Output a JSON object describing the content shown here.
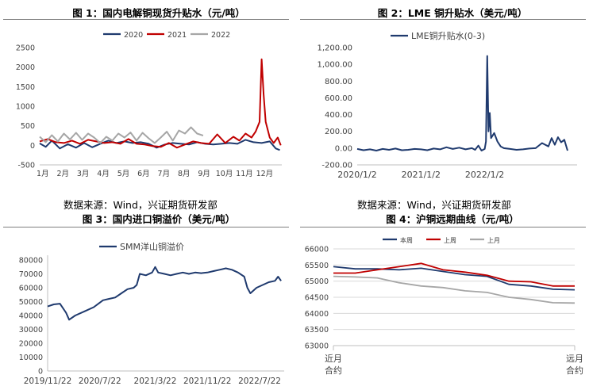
{
  "captions": {
    "fig1": "图 1：国内电解铜现货升贴水（元/吨）",
    "fig2": "图 2：LME 铜升贴水（美元/吨）",
    "fig3": "图 3：国内进口铜溢价（美元/吨）",
    "fig4": "图 4：沪铜远期曲线（元/吨）",
    "source_left": "数据来源：Wind，兴证期货研发部",
    "source_right": "数据来源：Wind，兴证期货研发部"
  },
  "colors": {
    "navy": "#1f3a6e",
    "red": "#c00000",
    "gray": "#a6a6a6"
  },
  "chart_data": [
    {
      "id": "fig1",
      "type": "line",
      "title": "图 1：国内电解铜现货升贴水（元/吨）",
      "categories": [
        "1月",
        "2月",
        "3月",
        "4月",
        "5月",
        "6月",
        "7月",
        "8月",
        "9月",
        "10月",
        "11月",
        "12月"
      ],
      "y_ticks": [
        "2500",
        "2000",
        "1500",
        "1000",
        "500",
        "0",
        "-500"
      ],
      "ylim": [
        -500,
        2500
      ],
      "legend": "top",
      "series": [
        {
          "name": "2020",
          "color": "#1f3a6e",
          "points": [
            [
              0,
              50
            ],
            [
              0.3,
              -40
            ],
            [
              0.6,
              120
            ],
            [
              1,
              -80
            ],
            [
              1.4,
              30
            ],
            [
              1.8,
              -60
            ],
            [
              2.2,
              60
            ],
            [
              2.6,
              -50
            ],
            [
              3,
              40
            ],
            [
              3.4,
              120
            ],
            [
              3.8,
              60
            ],
            [
              4.2,
              100
            ],
            [
              4.6,
              60
            ],
            [
              5,
              80
            ],
            [
              5.4,
              40
            ],
            [
              5.8,
              -60
            ],
            [
              6.2,
              20
            ],
            [
              6.6,
              60
            ],
            [
              7,
              40
            ],
            [
              7.4,
              20
            ],
            [
              7.8,
              80
            ],
            [
              8.2,
              40
            ],
            [
              8.6,
              20
            ],
            [
              9,
              40
            ],
            [
              9.4,
              60
            ],
            [
              9.8,
              40
            ],
            [
              10.2,
              140
            ],
            [
              10.6,
              80
            ],
            [
              11,
              60
            ],
            [
              11.4,
              100
            ],
            [
              11.7,
              -80
            ],
            [
              11.9,
              -120
            ]
          ]
        },
        {
          "name": "2021",
          "color": "#c00000",
          "points": [
            [
              0,
              100
            ],
            [
              0.4,
              160
            ],
            [
              0.8,
              80
            ],
            [
              1.2,
              60
            ],
            [
              1.6,
              120
            ],
            [
              2,
              40
            ],
            [
              2.4,
              140
            ],
            [
              2.8,
              100
            ],
            [
              3.2,
              60
            ],
            [
              3.6,
              80
            ],
            [
              4,
              40
            ],
            [
              4.4,
              160
            ],
            [
              4.8,
              40
            ],
            [
              5.2,
              20
            ],
            [
              5.6,
              -20
            ],
            [
              6,
              -40
            ],
            [
              6.4,
              60
            ],
            [
              6.8,
              -60
            ],
            [
              7.2,
              20
            ],
            [
              7.6,
              100
            ],
            [
              8,
              60
            ],
            [
              8.4,
              40
            ],
            [
              8.8,
              280
            ],
            [
              9.2,
              60
            ],
            [
              9.6,
              220
            ],
            [
              9.9,
              120
            ],
            [
              10.2,
              300
            ],
            [
              10.5,
              200
            ],
            [
              10.7,
              350
            ],
            [
              10.9,
              600
            ],
            [
              11.0,
              2200
            ],
            [
              11.1,
              1300
            ],
            [
              11.2,
              600
            ],
            [
              11.4,
              200
            ],
            [
              11.6,
              60
            ],
            [
              11.8,
              200
            ],
            [
              11.95,
              0
            ]
          ]
        },
        {
          "name": "2022",
          "color": "#a6a6a6",
          "points": [
            [
              0,
              220
            ],
            [
              0.3,
              80
            ],
            [
              0.6,
              260
            ],
            [
              0.9,
              100
            ],
            [
              1.2,
              300
            ],
            [
              1.5,
              150
            ],
            [
              1.8,
              320
            ],
            [
              2.1,
              140
            ],
            [
              2.4,
              300
            ],
            [
              2.7,
              200
            ],
            [
              3,
              60
            ],
            [
              3.3,
              220
            ],
            [
              3.6,
              120
            ],
            [
              3.9,
              300
            ],
            [
              4.2,
              200
            ],
            [
              4.5,
              330
            ],
            [
              4.8,
              120
            ],
            [
              5.1,
              320
            ],
            [
              5.4,
              180
            ],
            [
              5.7,
              60
            ],
            [
              6,
              200
            ],
            [
              6.3,
              350
            ],
            [
              6.6,
              120
            ],
            [
              6.9,
              380
            ],
            [
              7.2,
              300
            ],
            [
              7.5,
              460
            ],
            [
              7.8,
              300
            ],
            [
              8.1,
              250
            ]
          ]
        }
      ]
    },
    {
      "id": "fig2",
      "type": "line",
      "title": "图 2：LME 铜升贴水（美元/吨）",
      "x_ticks": [
        "2020/1/2",
        "2021/1/2",
        "2022/1/2"
      ],
      "y_ticks": [
        "1,200.00",
        "1,000.00",
        "800.00",
        "600.00",
        "400.00",
        "200.00",
        "0.00",
        "-200.00"
      ],
      "ylim": [
        -200,
        1200
      ],
      "legend": "top",
      "series": [
        {
          "name": "LME铜升贴水(0-3)",
          "color": "#1f3a6e",
          "points": [
            [
              0,
              -10
            ],
            [
              0.1,
              -25
            ],
            [
              0.2,
              -15
            ],
            [
              0.3,
              -30
            ],
            [
              0.4,
              -10
            ],
            [
              0.5,
              -20
            ],
            [
              0.6,
              -5
            ],
            [
              0.7,
              -25
            ],
            [
              0.8,
              -20
            ],
            [
              0.9,
              -10
            ],
            [
              1.0,
              -15
            ],
            [
              1.1,
              -25
            ],
            [
              1.2,
              -5
            ],
            [
              1.3,
              -15
            ],
            [
              1.4,
              10
            ],
            [
              1.5,
              -10
            ],
            [
              1.6,
              5
            ],
            [
              1.7,
              -15
            ],
            [
              1.8,
              0
            ],
            [
              1.85,
              -20
            ],
            [
              1.9,
              30
            ],
            [
              1.95,
              -30
            ],
            [
              2.0,
              -10
            ],
            [
              2.02,
              80
            ],
            [
              2.04,
              1100
            ],
            [
              2.06,
              200
            ],
            [
              2.08,
              420
            ],
            [
              2.1,
              120
            ],
            [
              2.15,
              180
            ],
            [
              2.2,
              80
            ],
            [
              2.25,
              20
            ],
            [
              2.3,
              0
            ],
            [
              2.4,
              -10
            ],
            [
              2.5,
              -20
            ],
            [
              2.6,
              -15
            ],
            [
              2.7,
              -5
            ],
            [
              2.8,
              0
            ],
            [
              2.9,
              60
            ],
            [
              3.0,
              20
            ],
            [
              3.05,
              120
            ],
            [
              3.1,
              40
            ],
            [
              3.15,
              130
            ],
            [
              3.2,
              70
            ],
            [
              3.25,
              100
            ],
            [
              3.3,
              -30
            ]
          ]
        }
      ]
    },
    {
      "id": "fig3",
      "type": "line",
      "title": "图 3：国内进口铜溢价（美元/吨）",
      "x_ticks": [
        "2019/11/22",
        "2020/7/22",
        "2021/3/22",
        "2021/11/22",
        "2022/7/22"
      ],
      "y_ticks": [
        "80000",
        "70000",
        "60000",
        "50000",
        "40000",
        "30000",
        "20000",
        "10000",
        "0"
      ],
      "ylim": [
        0,
        80000
      ],
      "legend": "top",
      "series": [
        {
          "name": "SMM洋山铜溢价",
          "color": "#1f3a6e",
          "points": [
            [
              0,
              46500
            ],
            [
              0.1,
              48000
            ],
            [
              0.2,
              48500
            ],
            [
              0.3,
              42000
            ],
            [
              0.35,
              37000
            ],
            [
              0.45,
              40000
            ],
            [
              0.6,
              43000
            ],
            [
              0.75,
              46000
            ],
            [
              0.9,
              51000
            ],
            [
              1.0,
              52000
            ],
            [
              1.1,
              53000
            ],
            [
              1.2,
              56000
            ],
            [
              1.3,
              59000
            ],
            [
              1.4,
              60000
            ],
            [
              1.45,
              62000
            ],
            [
              1.5,
              70000
            ],
            [
              1.6,
              69000
            ],
            [
              1.7,
              71000
            ],
            [
              1.75,
              75000
            ],
            [
              1.8,
              71000
            ],
            [
              1.9,
              70000
            ],
            [
              2.0,
              69000
            ],
            [
              2.1,
              70000
            ],
            [
              2.2,
              71000
            ],
            [
              2.3,
              70000
            ],
            [
              2.4,
              71000
            ],
            [
              2.5,
              70500
            ],
            [
              2.6,
              71000
            ],
            [
              2.7,
              72000
            ],
            [
              2.8,
              73000
            ],
            [
              2.9,
              74000
            ],
            [
              3.0,
              73000
            ],
            [
              3.1,
              71000
            ],
            [
              3.2,
              68000
            ],
            [
              3.25,
              60000
            ],
            [
              3.3,
              56000
            ],
            [
              3.4,
              60000
            ],
            [
              3.5,
              62000
            ],
            [
              3.6,
              64000
            ],
            [
              3.7,
              65000
            ],
            [
              3.75,
              68000
            ],
            [
              3.8,
              65000
            ]
          ]
        }
      ]
    },
    {
      "id": "fig4",
      "type": "line",
      "title": "图 4：沪铜远期曲线（元/吨）",
      "x_ticks": [
        "近月合约",
        "远月合约"
      ],
      "y_ticks": [
        "66000",
        "65500",
        "65000",
        "64500",
        "64000",
        "63500",
        "63000"
      ],
      "ylim": [
        63000,
        66000
      ],
      "legend": "top",
      "series": [
        {
          "name": "本周",
          "color": "#1f3a6e",
          "values": [
            65450,
            65380,
            65380,
            65350,
            65400,
            65300,
            65200,
            65150,
            64900,
            64850,
            64750,
            64730
          ]
        },
        {
          "name": "上周",
          "color": "#c00000",
          "values": [
            65250,
            65250,
            65350,
            65450,
            65550,
            65350,
            65280,
            65180,
            65000,
            64980,
            64850,
            64850
          ]
        },
        {
          "name": "上月",
          "color": "#a6a6a6",
          "values": [
            65150,
            65130,
            65100,
            64950,
            64850,
            64800,
            64700,
            64650,
            64500,
            64430,
            64330,
            64320
          ]
        }
      ]
    }
  ]
}
